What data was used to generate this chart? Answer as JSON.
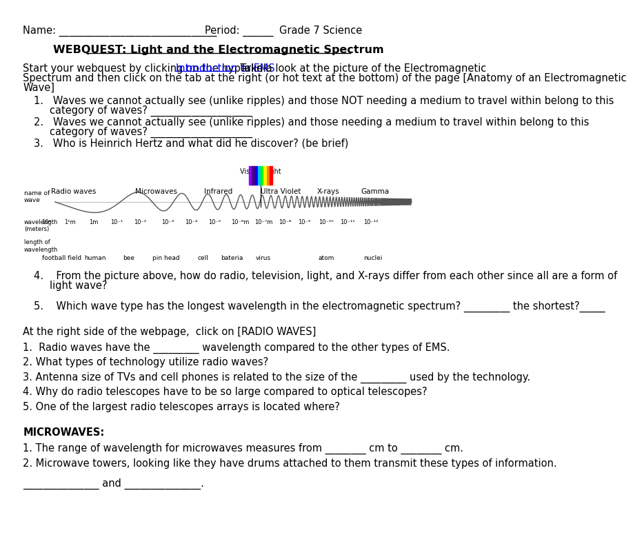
{
  "bg_color": "#ffffff",
  "header_name": "Name: _______________________________",
  "header_period": "Period: ______",
  "header_grade": "Grade 7 Science",
  "title": "WEBQUEST: Light and the Electromagnetic Spectrum",
  "intro_part1": "Start your webquest by clicking on the hyperlink  ",
  "intro_link": "Introduction to EMS",
  "intro_part2": ". Take a look at the picture of the Electromagnetic",
  "intro_line2": "Spectrum and then click on the tab at the right (or hot text at the bottom) of the page [Anatomy of an Electromagnetic",
  "intro_line3": "Wave]",
  "q1a": "1.   Waves we cannot actually see (unlike ripples) and those NOT needing a medium to travel within belong to this",
  "q1b": "category of waves? ____________________",
  "q2a": "2.   Waves we cannot actually see (unlike ripples) and those needing a medium to travel within belong to this",
  "q2b": "category of waves? ____________________",
  "q3": "3.   Who is Heinrich Hertz and what did he discover? (be brief)",
  "q4a": "4.    From the picture above, how do radio, television, light, and X-rays differ from each other since all are a form of",
  "q4b": "light wave?",
  "q5": "5.    Which wave type has the longest wavelength in the electromagnetic spectrum? _________ the shortest?_____",
  "radio_header": "At the right side of the webpage,  click on [RADIO WAVES]",
  "r1": "1.  Radio waves have the _________ wavelength compared to the other types of EMS.",
  "r2": "2. What types of technology utilize radio waves?",
  "r3": "3. Antenna size of TVs and cell phones is related to the size of the _________ used by the technology.",
  "r4": "4. Why do radio telescopes have to be so large compared to optical telescopes?",
  "r5": "5. One of the largest radio telescopes arrays is located where?",
  "micro_header": "MICROWAVES:",
  "m1": "1. The range of wavelength for microwaves measures from ________ cm to ________ cm.",
  "m2": "2. Microwave towers, looking like they have drums attached to them transmit these types of information.",
  "m3": "_______________ and _______________.",
  "wave_labels": [
    [
      "Radio waves",
      0.13
    ],
    [
      "Microwaves",
      0.34
    ],
    [
      "Infrared",
      0.5
    ],
    [
      "Ultra Violet",
      0.66
    ],
    [
      "X-rays",
      0.78
    ],
    [
      "Gamma",
      0.9
    ]
  ],
  "wl_labels": [
    [
      "10²",
      0.06
    ],
    [
      "1¹m",
      0.12
    ],
    [
      "1m",
      0.18
    ],
    [
      "10⁻¹",
      0.24
    ],
    [
      "10⁻²",
      0.3
    ],
    [
      "10⁻³",
      0.37
    ],
    [
      "10⁻⁴",
      0.43
    ],
    [
      "10⁻⁵",
      0.49
    ],
    [
      "10⁻⁶m",
      0.555
    ],
    [
      "10⁻⁷m",
      0.615
    ],
    [
      "10⁻⁸",
      0.67
    ],
    [
      "10⁻⁹",
      0.72
    ],
    [
      "10⁻¹⁰",
      0.775
    ],
    [
      "10⁻¹¹",
      0.83
    ],
    [
      "10⁻¹²",
      0.89
    ]
  ],
  "size_labels": [
    [
      "football field",
      0.1
    ],
    [
      "human",
      0.185
    ],
    [
      "bee",
      0.27
    ],
    [
      "pin head",
      0.365
    ],
    [
      "cell",
      0.46
    ],
    [
      "bateria",
      0.535
    ],
    [
      "virus",
      0.615
    ],
    [
      "atom",
      0.775
    ],
    [
      "nuclei",
      0.895
    ]
  ],
  "rainbow_colors": [
    "#8B00FF",
    "#4B0082",
    "#0000FF",
    "#00BFFF",
    "#00FF00",
    "#FFFF00",
    "#FF7F00",
    "#FF0000"
  ]
}
